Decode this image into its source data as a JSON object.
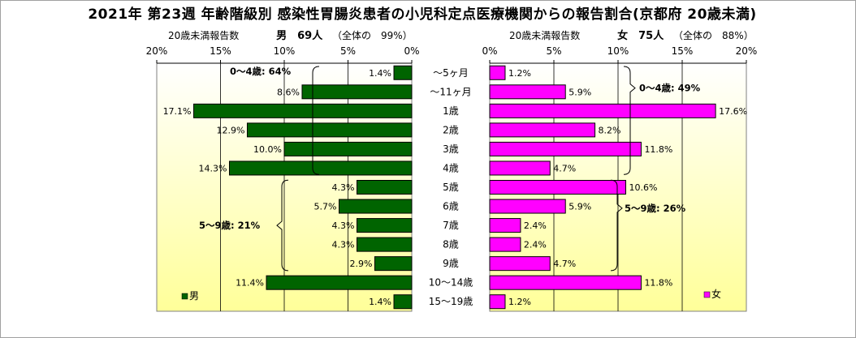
{
  "title": "2021年 第23週 年齢階級別 感染性胃腸炎患者の小児科定点医療機関からの報告割合(京都府 20歳未満)",
  "male_header": {
    "caption": "20歳未満報告数",
    "gender_count": "男　69人",
    "share": "（全体の　99%）"
  },
  "female_header": {
    "caption": "20歳未満報告数",
    "gender_count": "女　75人",
    "share": "（全体の　88%）"
  },
  "annotations": {
    "male_0_4": "0～4歳: 64%",
    "male_5_9": "5～9歳: 21%",
    "female_0_4": "0～4歳: 49%",
    "female_5_9": "5～9歳: 26%"
  },
  "legend": {
    "male": "男",
    "female": "女"
  },
  "colors": {
    "male_bar": "#006400",
    "female_bar": "#ff00ff",
    "plot_bg_top": "#ffffff",
    "plot_bg_bottom": "#ffff99"
  },
  "chart_data": {
    "type": "bar",
    "orientation": "horizontal-butterfly",
    "categories": [
      "～5ヶ月",
      "～11ヶ月",
      "1歳",
      "2歳",
      "3歳",
      "4歳",
      "5歳",
      "6歳",
      "7歳",
      "8歳",
      "9歳",
      "10～14歳",
      "15～19歳"
    ],
    "series": [
      {
        "name": "男",
        "values": [
          1.4,
          8.6,
          17.1,
          12.9,
          10.0,
          14.3,
          4.3,
          5.7,
          4.3,
          4.3,
          2.9,
          11.4,
          1.4
        ]
      },
      {
        "name": "女",
        "values": [
          1.2,
          5.9,
          17.6,
          8.2,
          11.8,
          4.7,
          10.6,
          5.9,
          2.4,
          2.4,
          4.7,
          11.8,
          1.2
        ]
      }
    ],
    "value_labels": {
      "male": [
        "1.4%",
        "8.6%",
        "17.1%",
        "12.9%",
        "10.0%",
        "14.3%",
        "4.3%",
        "5.7%",
        "4.3%",
        "4.3%",
        "2.9%",
        "11.4%",
        "1.4%"
      ],
      "female": [
        "1.2%",
        "5.9%",
        "17.6%",
        "8.2%",
        "11.8%",
        "4.7%",
        "10.6%",
        "5.9%",
        "2.4%",
        "2.4%",
        "4.7%",
        "11.8%",
        "1.2%"
      ]
    },
    "xlim": [
      0,
      20
    ],
    "x_ticks": [
      0,
      5,
      10,
      15,
      20
    ],
    "x_tick_labels": [
      "0%",
      "5%",
      "10%",
      "15%",
      "20%"
    ],
    "grid": true,
    "legend_position": "bottom-inside"
  }
}
